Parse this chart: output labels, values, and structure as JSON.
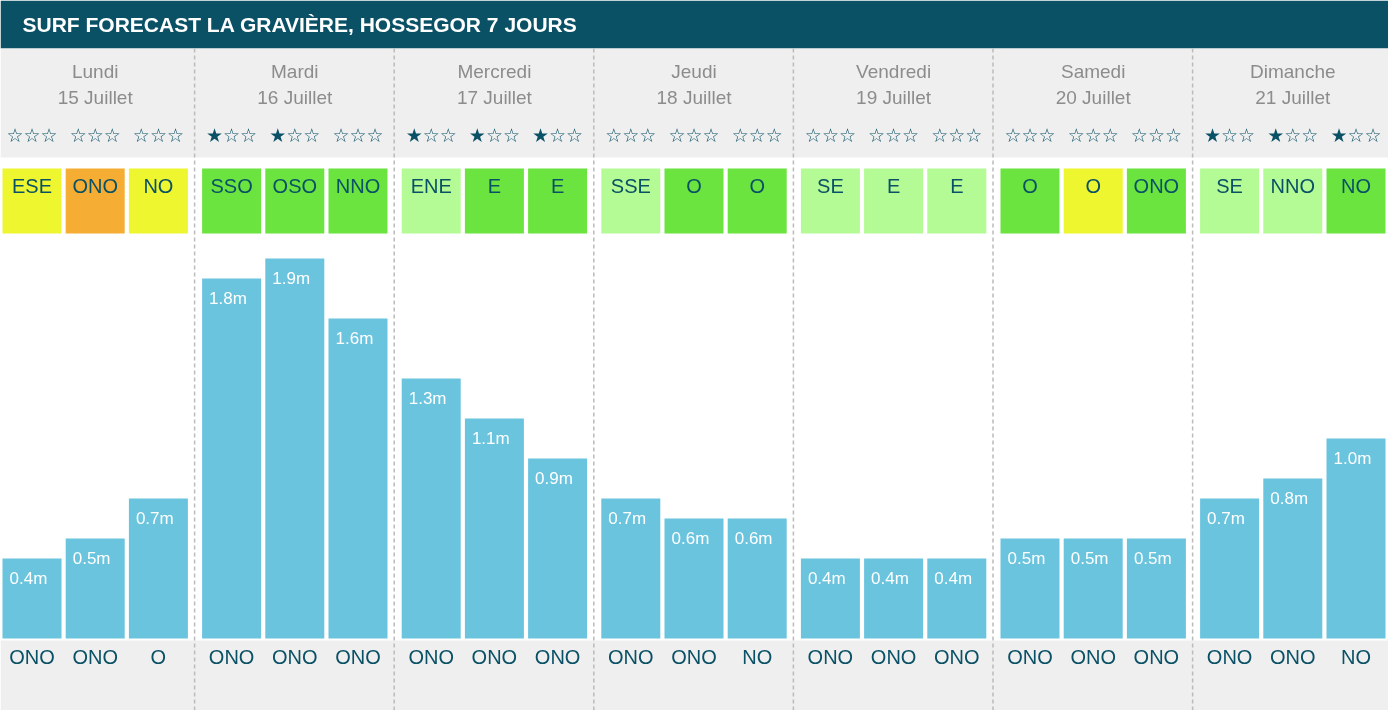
{
  "chart_data": {
    "type": "bar",
    "title": "SURF FORECAST LA GRAVIÈRE, HOSSEGOR 7 JOURS",
    "categories": [
      "ONO",
      "ONO",
      "O",
      "ONO",
      "ONO",
      "ONO",
      "ONO",
      "ONO",
      "ONO",
      "ONO",
      "ONO",
      "NO",
      "ONO",
      "ONO",
      "ONO",
      "ONO",
      "ONO",
      "ONO",
      "ONO",
      "ONO",
      "NO"
    ],
    "values": [
      0.4,
      0.5,
      0.7,
      1.8,
      1.9,
      1.6,
      1.3,
      1.1,
      0.9,
      0.7,
      0.6,
      0.6,
      0.4,
      0.4,
      0.4,
      0.5,
      0.5,
      0.5,
      0.7,
      0.8,
      1.0
    ],
    "color": "#6ac4de",
    "value_labels": [
      "0.4m",
      "0.5m",
      "0.7m",
      "1.8m",
      "1.9m",
      "1.6m",
      "1.3m",
      "1.1m",
      "0.9m",
      "0.7m",
      "0.6m",
      "0.6m",
      "0.4m",
      "0.4m",
      "0.4m",
      "0.5m",
      "0.5m",
      "0.5m",
      "0.7m",
      "0.8m",
      "1.0m"
    ],
    "annotations": [
      "Lundi",
      "15 Juillet",
      "Mardi",
      "16 Juillet",
      "Mercredi",
      "17 Juillet",
      "Jeudi",
      "18 Juillet",
      "Vendredi",
      "19 Juillet",
      "Samedi",
      "20 Juillet",
      "Dimanche",
      "21 Juillet",
      "☆☆☆",
      "☆☆☆",
      "☆☆☆",
      "★☆☆",
      "★☆☆",
      "☆☆☆",
      "★☆☆",
      "★☆☆",
      "★☆☆",
      "☆☆☆",
      "☆☆☆",
      "☆☆☆",
      "☆☆☆",
      "☆☆☆",
      "☆☆☆",
      "☆☆☆",
      "☆☆☆",
      "☆☆☆",
      "★☆☆",
      "★☆☆",
      "★☆☆",
      "ESE",
      "ONO",
      "NO",
      "SSO",
      "OSO",
      "NNO",
      "ENE",
      "E",
      "E",
      "SSE",
      "O",
      "O",
      "SE",
      "E",
      "E",
      "O",
      "O",
      "ONO",
      "SE",
      "NNO",
      "NO"
    ]
  }
}
